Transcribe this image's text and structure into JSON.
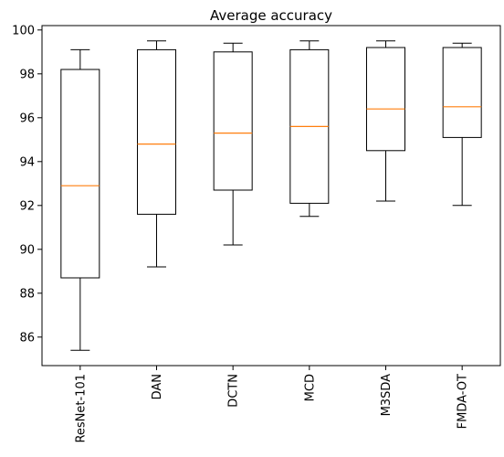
{
  "chart_data": {
    "type": "box",
    "title": "Average accuracy",
    "xlabel": "",
    "ylabel": "",
    "categories": [
      "ResNet-101",
      "DAN",
      "DCTN",
      "MCD",
      "M3SDA",
      "FMDA-OT"
    ],
    "boxes": [
      {
        "whisker_low": 85.4,
        "q1": 88.7,
        "median": 92.9,
        "q3": 98.2,
        "whisker_high": 99.1
      },
      {
        "whisker_low": 89.2,
        "q1": 91.6,
        "median": 94.8,
        "q3": 99.1,
        "whisker_high": 99.5
      },
      {
        "whisker_low": 90.2,
        "q1": 92.7,
        "median": 95.3,
        "q3": 99.0,
        "whisker_high": 99.4
      },
      {
        "whisker_low": 91.5,
        "q1": 92.1,
        "median": 95.6,
        "q3": 99.1,
        "whisker_high": 99.5
      },
      {
        "whisker_low": 92.2,
        "q1": 94.5,
        "median": 96.4,
        "q3": 99.2,
        "whisker_high": 99.5
      },
      {
        "whisker_low": 92.0,
        "q1": 95.1,
        "median": 96.5,
        "q3": 99.2,
        "whisker_high": 99.4
      }
    ],
    "ylim": [
      84.7,
      100.2
    ],
    "yticks": [
      86,
      88,
      90,
      92,
      94,
      96,
      98,
      100
    ],
    "xtick_rotation": 90,
    "grid": false,
    "colors": {
      "box": "#000000",
      "median": "#ff7f0e",
      "background": "#ffffff"
    }
  }
}
